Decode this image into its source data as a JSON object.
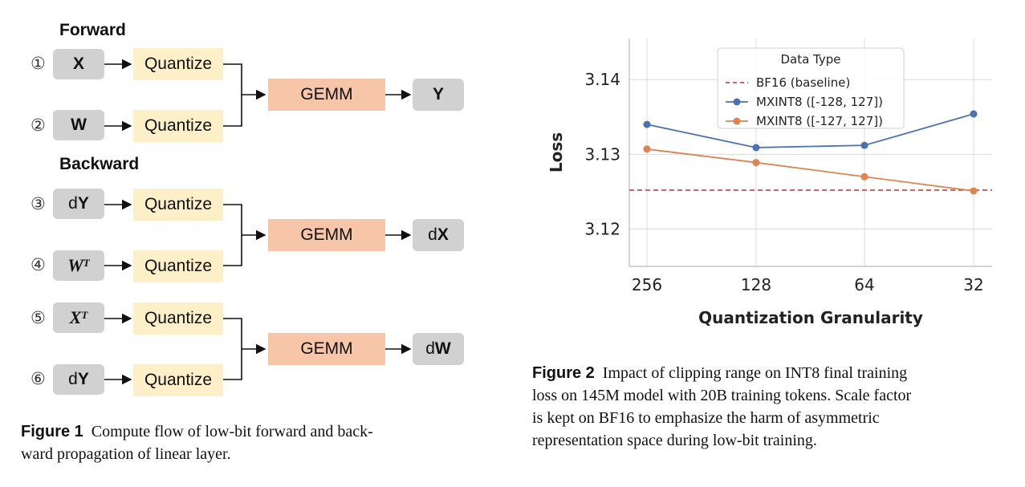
{
  "figure1": {
    "forward_title": "Forward",
    "backward_title": "Backward",
    "quantize_label": "Quantize",
    "gemm_label": "GEMM",
    "steps": [
      {
        "num": "①",
        "input": "X"
      },
      {
        "num": "②",
        "input": "W"
      },
      {
        "num": "③",
        "input_prefix": "d",
        "input": "Y"
      },
      {
        "num": "④",
        "input": "W",
        "superscript": "T"
      },
      {
        "num": "⑤",
        "input": "X",
        "superscript": "T"
      },
      {
        "num": "⑥",
        "input_prefix": "d",
        "input": "Y"
      }
    ],
    "outputs": [
      {
        "prefix": "",
        "main": "Y"
      },
      {
        "prefix": "d",
        "main": "X"
      },
      {
        "prefix": "d",
        "main": "W"
      }
    ],
    "caption_label": "Figure 1",
    "caption_line1": "Compute flow of low-bit forward and back-",
    "caption_line2": "ward propagation of linear layer."
  },
  "figure2": {
    "caption_label": "Figure 2",
    "caption_line1": "Impact of clipping range on INT8 final training",
    "caption_line2": "loss on 145M model with 20B training tokens. Scale factor",
    "caption_line3": "is kept on BF16 to emphasize the harm of asymmetric",
    "caption_line4": "representation space during low-bit training."
  },
  "chart_data": {
    "type": "line",
    "title": "",
    "xlabel": "Quantization Granularity",
    "ylabel": "Loss",
    "categories": [
      "256",
      "128",
      "64",
      "32"
    ],
    "yticks": [
      "3.12",
      "3.13",
      "3.14"
    ],
    "ylim": [
      3.115,
      3.1455
    ],
    "grid": true,
    "legend_title": "Data Type",
    "legend_position": "top-center",
    "baseline": {
      "name": "BF16 (baseline)",
      "value": 3.1252,
      "color": "#c44e52",
      "style": "dashed"
    },
    "series": [
      {
        "name": "MXINT8 ([-128, 127])",
        "color": "#4c72b0",
        "values": [
          3.134,
          3.1309,
          3.1312,
          3.1354
        ]
      },
      {
        "name": "MXINT8 ([-127, 127])",
        "color": "#dd8452",
        "values": [
          3.1307,
          3.1289,
          3.127,
          3.1251
        ]
      }
    ]
  }
}
